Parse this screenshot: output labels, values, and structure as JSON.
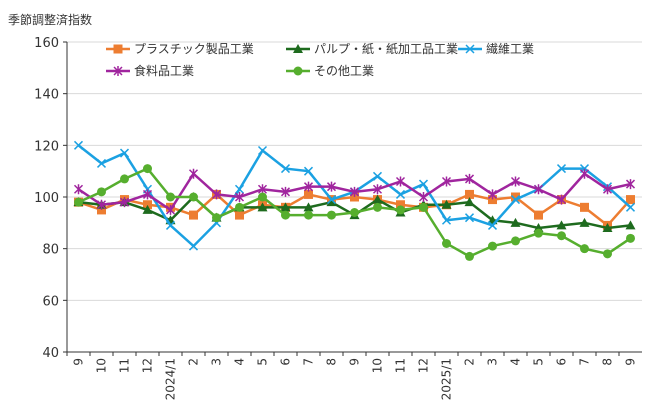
{
  "chart_data": {
    "type": "line",
    "ylabel": "季節調整済指数",
    "ylim": [
      40,
      160
    ],
    "yticks": [
      40,
      60,
      80,
      100,
      120,
      140,
      160
    ],
    "grid": "horizontal",
    "legend_placement": "top",
    "categories": [
      "9",
      "10",
      "11",
      "12",
      "2024/1",
      "2",
      "3",
      "4",
      "5",
      "6",
      "7",
      "8",
      "9",
      "10",
      "11",
      "12",
      "2025/1",
      "2",
      "3",
      "4",
      "5",
      "6",
      "7",
      "8",
      "9"
    ],
    "series": [
      {
        "name": "プラスチック製品工業",
        "color": "#ED7D31",
        "marker": "square",
        "values": [
          98,
          95,
          99,
          97,
          96,
          93,
          101,
          93,
          97,
          96,
          101,
          99,
          100,
          99,
          97,
          96,
          97,
          101,
          99,
          100,
          93,
          99,
          96,
          89,
          99
        ]
      },
      {
        "name": "パルプ・紙・紙加工品工業",
        "color": "#1E6B1E",
        "marker": "triangle",
        "values": [
          98,
          97,
          98,
          95,
          91,
          100,
          92,
          96,
          96,
          96,
          96,
          98,
          93,
          99,
          94,
          97,
          97,
          98,
          91,
          90,
          88,
          89,
          90,
          88,
          89
        ]
      },
      {
        "name": "繊維工業",
        "color": "#1BA1E2",
        "marker": "x",
        "values": [
          120,
          113,
          117,
          103,
          89,
          81,
          90,
          103,
          118,
          111,
          110,
          99,
          102,
          108,
          101,
          105,
          91,
          92,
          89,
          99,
          103,
          111,
          111,
          104,
          96
        ]
      },
      {
        "name": "食料品工業",
        "color": "#A0259E",
        "marker": "star",
        "values": [
          103,
          97,
          98,
          101,
          95,
          109,
          101,
          100,
          103,
          102,
          104,
          104,
          102,
          103,
          106,
          100,
          106,
          107,
          101,
          106,
          103,
          99,
          109,
          103,
          105
        ]
      },
      {
        "name": "その他工業",
        "color": "#56AE2E",
        "marker": "circle",
        "values": [
          98,
          102,
          107,
          111,
          100,
          100,
          92,
          96,
          100,
          93,
          93,
          93,
          94,
          96,
          95,
          96,
          82,
          77,
          81,
          83,
          86,
          85,
          80,
          78,
          84
        ]
      }
    ]
  }
}
